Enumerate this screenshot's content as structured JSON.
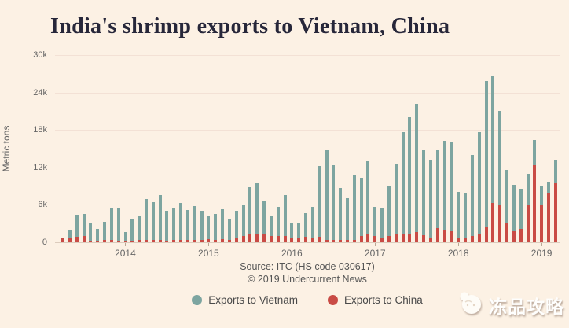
{
  "title": "India's shrimp exports to Vietnam, China",
  "y_axis": {
    "label": "Metric tons",
    "ticks": [
      "0",
      "6k",
      "12k",
      "18k",
      "24k",
      "30k"
    ]
  },
  "x_axis": {
    "years": [
      "2014",
      "2015",
      "2016",
      "2017",
      "2018",
      "2019"
    ]
  },
  "source": {
    "line1": "Source: ITC (HS code 030617)",
    "line2": "© 2019 Undercurrent News"
  },
  "legend": [
    {
      "label": "Exports to Vietnam",
      "color": "#7da5a0"
    },
    {
      "label": "Exports to China",
      "color": "#c94b45"
    }
  ],
  "watermark": {
    "text": "冻品攻略",
    "icon": "rabbit-logo-icon"
  },
  "colors": {
    "background": "#fcf1e4",
    "vietnam_bar": "#7da5a0",
    "china_bar": "#c94b45",
    "title_text": "#27273a",
    "axis_text": "#666666",
    "gridline": "#f3e1d5"
  },
  "chart_data": {
    "type": "bar",
    "title": "India's shrimp exports to Vietnam, China",
    "ylabel": "Metric tons",
    "ylim": [
      0,
      30000
    ],
    "grid": "horizontal",
    "legend_position": "bottom-center",
    "layout": "monthly columns Apr 2013 - Mar 2019, China series drawn in front of Vietnam series at same x",
    "x": [
      "Apr 2013",
      "May 2013",
      "Jun 2013",
      "Jul 2013",
      "Aug 2013",
      "Sep 2013",
      "Oct 2013",
      "Nov 2013",
      "Dec 2013",
      "Jan 2014",
      "Feb 2014",
      "Mar 2014",
      "Apr 2014",
      "May 2014",
      "Jun 2014",
      "Jul 2014",
      "Aug 2014",
      "Sep 2014",
      "Oct 2014",
      "Nov 2014",
      "Dec 2014",
      "Jan 2015",
      "Feb 2015",
      "Mar 2015",
      "Apr 2015",
      "May 2015",
      "Jun 2015",
      "Jul 2015",
      "Aug 2015",
      "Sep 2015",
      "Oct 2015",
      "Nov 2015",
      "Dec 2015",
      "Jan 2016",
      "Feb 2016",
      "Mar 2016",
      "Apr 2016",
      "May 2016",
      "Jun 2016",
      "Jul 2016",
      "Aug 2016",
      "Sep 2016",
      "Oct 2016",
      "Nov 2016",
      "Dec 2016",
      "Jan 2017",
      "Feb 2017",
      "Mar 2017",
      "Apr 2017",
      "May 2017",
      "Jun 2017",
      "Jul 2017",
      "Aug 2017",
      "Sep 2017",
      "Oct 2017",
      "Nov 2017",
      "Dec 2017",
      "Jan 2018",
      "Feb 2018",
      "Mar 2018",
      "Apr 2018",
      "May 2018",
      "Jun 2018",
      "Jul 2018",
      "Aug 2018",
      "Sep 2018",
      "Oct 2018",
      "Nov 2018",
      "Dec 2018",
      "Jan 2019",
      "Feb 2019",
      "Mar 2019"
    ],
    "x_tick_labels": [
      "2014",
      "2015",
      "2016",
      "2017",
      "2018",
      "2019"
    ],
    "series": [
      {
        "name": "Exports to Vietnam",
        "color": "#7da5a0",
        "values": [
          500,
          2000,
          4400,
          4600,
          3100,
          2100,
          3300,
          5500,
          5400,
          1600,
          3800,
          4200,
          6900,
          6400,
          7600,
          5000,
          5600,
          6300,
          5200,
          5800,
          5000,
          4300,
          4600,
          5300,
          3600,
          5100,
          5900,
          8800,
          9500,
          6600,
          4100,
          5700,
          7600,
          3200,
          3000,
          4700,
          5700,
          12200,
          14700,
          12300,
          8700,
          7000,
          10700,
          10300,
          13000,
          5700,
          5400,
          9000,
          12600,
          17700,
          20000,
          22200,
          14700,
          13200,
          14800,
          16300,
          16000,
          8100,
          7800,
          14000,
          17600,
          25900,
          26600,
          21100,
          11600,
          9200,
          8600,
          11000,
          16400,
          9100,
          9700,
          13200
        ]
      },
      {
        "name": "Exports to China",
        "color": "#c94b45",
        "values": [
          650,
          750,
          900,
          1000,
          250,
          250,
          350,
          350,
          250,
          200,
          250,
          350,
          350,
          350,
          400,
          250,
          350,
          400,
          350,
          400,
          350,
          500,
          400,
          500,
          400,
          600,
          950,
          1200,
          1350,
          1250,
          1000,
          1000,
          950,
          750,
          700,
          850,
          600,
          850,
          400,
          350,
          350,
          400,
          350,
          1000,
          1200,
          950,
          750,
          950,
          1200,
          1300,
          1350,
          1600,
          1100,
          600,
          2300,
          1900,
          1800,
          600,
          600,
          1000,
          1400,
          2500,
          6300,
          6000,
          3000,
          1800,
          2200,
          6100,
          12400,
          5900,
          7800,
          9500
        ]
      }
    ]
  }
}
